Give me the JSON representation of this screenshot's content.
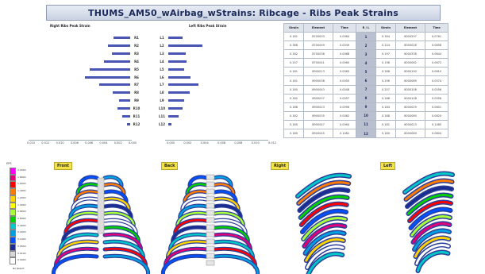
{
  "title": "THUMS_AM50_wAirbag_wStrains: Ribcage - Ribs Peak Strains",
  "right_chart": {
    "title": "Right Ribs Peak Strain",
    "labels": [
      "R1",
      "R2",
      "R3",
      "R4",
      "R5",
      "R6",
      "R7",
      "R8",
      "R9",
      "R10",
      "R11",
      "R12"
    ],
    "values": [
      0.0023,
      0.003,
      0.0025,
      0.0036,
      0.0055,
      0.0062,
      0.0042,
      0.0024,
      0.0015,
      0.0017,
      0.0011,
      0.0004
    ],
    "axis_ticks": [
      "0.010",
      "0.012",
      "0.010",
      "0.008",
      "0.006",
      "0.004",
      "0.002",
      "0.000"
    ]
  },
  "left_chart": {
    "title": "Left Ribs Peak Strain",
    "labels": [
      "L1",
      "L2",
      "L3",
      "L4",
      "L5",
      "L6",
      "L7",
      "L8",
      "L9",
      "L10",
      "L11",
      "L12"
    ],
    "values": [
      0.002,
      0.0047,
      0.0024,
      0.0025,
      0.0022,
      0.003,
      0.0041,
      0.0029,
      0.0022,
      0.0019,
      0.0014,
      0.0004
    ],
    "axis_ticks": [
      "0.000",
      "0.002",
      "0.004",
      "0.006",
      "0.008",
      "0.010",
      "0.012"
    ]
  },
  "table": {
    "headers": [
      "Strain",
      "Element",
      "Time",
      "R / L",
      "Strain",
      "Element",
      "Time"
    ],
    "rows": [
      [
        "0.161",
        "8700003",
        "0.0064",
        "1",
        "0.164",
        "8000297",
        "0.0761"
      ],
      [
        "0.368",
        "8700049",
        "0.0049",
        "2",
        "0.144",
        "8000026",
        "0.0658"
      ],
      [
        "0.182",
        "8700036",
        "0.0068",
        "3",
        "0.197",
        "8000338",
        "0.0644"
      ],
      [
        "0.207",
        "8700041",
        "0.0060",
        "4",
        "0.198",
        "8000062",
        "0.0672"
      ],
      [
        "0.161",
        "8900013",
        "0.0065",
        "5",
        "0.186",
        "8000190",
        "0.0610"
      ],
      [
        "0.161",
        "8900038",
        "0.0050",
        "6",
        "0.196",
        "8000089",
        "0.0574"
      ],
      [
        "0.180",
        "8900043",
        "0.0048",
        "7",
        "0.207",
        "8000108",
        "0.0556"
      ],
      [
        "0.182",
        "8900037",
        "0.0097",
        "8",
        "0.188",
        "8000108",
        "0.0556"
      ],
      [
        "0.188",
        "8900023",
        "0.0096",
        "9",
        "0.184",
        "8000029",
        "0.0601"
      ],
      [
        "0.182",
        "8900035",
        "0.0062",
        "10",
        "0.188",
        "8000080",
        "0.0620"
      ],
      [
        "0.180",
        "8900047",
        "0.0064",
        "11",
        "0.181",
        "8000013",
        "0.1480"
      ],
      [
        "0.180",
        "8900045",
        "0.1081",
        "12",
        "0.180",
        "8000089",
        "0.0804"
      ]
    ]
  },
  "views": [
    "Front",
    "Back",
    "Right",
    "Left"
  ],
  "legend": {
    "title": "EPS",
    "ticks": [
      "2.0000",
      "1.8000",
      "1.6000",
      "1.4000",
      "1.2000",
      "1.0000",
      "0.8000",
      "0.6000",
      "0.4000",
      "0.2000",
      "0.1000",
      "0.0500",
      "0.0100",
      "0.0000"
    ],
    "colors": [
      "#ff00ff",
      "#e0007a",
      "#ff0000",
      "#ff7a00",
      "#ffd200",
      "#ffff00",
      "#a8ff3a",
      "#00d000",
      "#00c8c8",
      "#00a0e0",
      "#0050ff",
      "#1a2c8f",
      "#d8d8d8",
      "#ffffff"
    ],
    "footer": "No Result"
  }
}
